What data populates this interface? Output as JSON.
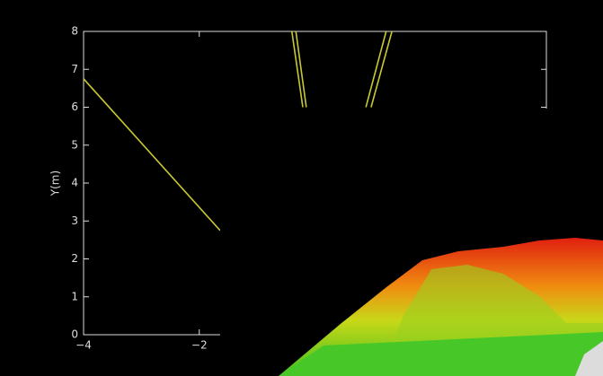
{
  "chart_data": {
    "type": "line",
    "ylabel": "Y(m)",
    "xlim": [
      -4,
      4
    ],
    "ylim": [
      0,
      8
    ],
    "xticks": [
      {
        "value": -4,
        "label": "−4"
      },
      {
        "value": -2,
        "label": "−2"
      }
    ],
    "yticks": [
      0,
      1,
      2,
      3,
      4,
      5,
      6,
      7,
      8
    ],
    "series": [
      {
        "color": "#c8c832",
        "x": [
          -4,
          -1.64
        ],
        "values": [
          6.75,
          2.75
        ]
      },
      {
        "color": "#c8c832",
        "x": [
          -0.4,
          -0.21
        ],
        "values": [
          8,
          6
        ]
      },
      {
        "color": "#c8c832",
        "x": [
          -0.33,
          -0.15
        ],
        "values": [
          8,
          6
        ]
      },
      {
        "color": "#c8c832",
        "x": [
          1.23,
          0.88
        ],
        "values": [
          8,
          6
        ]
      },
      {
        "color": "#c8c832",
        "x": [
          1.33,
          0.97
        ],
        "values": [
          8,
          6
        ]
      }
    ]
  }
}
